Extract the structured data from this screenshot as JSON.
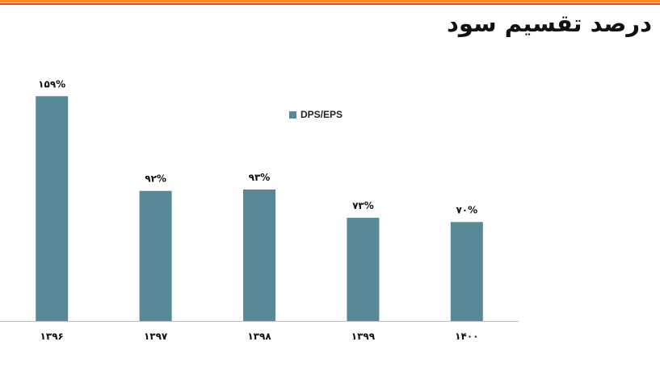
{
  "title": "درصد تقسیم سود",
  "colors": {
    "stripe_primary": "#f28c28",
    "stripe_secondary": "#e8453c",
    "bar": "#578a96",
    "axis": "#bfbfbf"
  },
  "chart_data": {
    "type": "bar",
    "title": "",
    "xlabel": "",
    "ylabel": "",
    "categories": [
      "۱۳۹۶",
      "۱۳۹۷",
      "۱۳۹۸",
      "۱۳۹۹",
      "۱۴۰۰"
    ],
    "series": [
      {
        "name": "DPS/EPS",
        "values": [
          159,
          92,
          93,
          73,
          70
        ],
        "labels": [
          "۱۵۹%",
          "۹۲%",
          "۹۳%",
          "۷۳%",
          "۷۰%"
        ]
      }
    ],
    "ylim": [
      0,
      170
    ],
    "grid": false,
    "legend_position": "top-center"
  }
}
